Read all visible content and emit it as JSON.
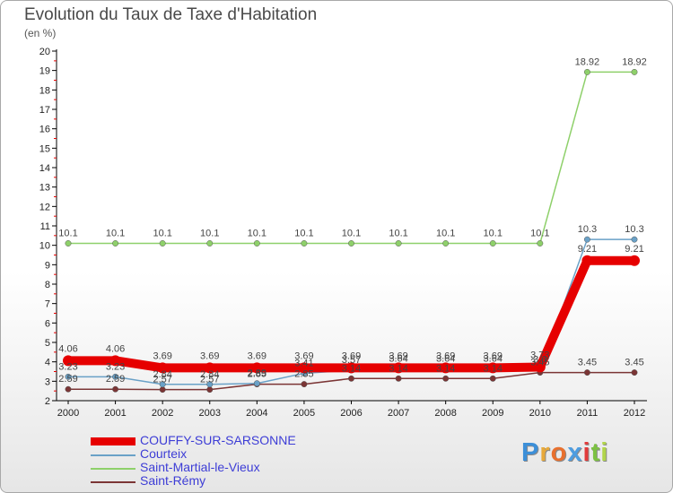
{
  "header": {
    "title": "Evolution du Taux de Taxe d'Habitation",
    "subtitle": "(en %)"
  },
  "brand": {
    "text": "Proxiti",
    "letters": [
      "P",
      "r",
      "o",
      "x",
      "i",
      "t",
      "i"
    ],
    "colors": [
      "#3c8fd8",
      "#e8a93a",
      "#e8702e",
      "#4e9de0",
      "#e23b3b",
      "#7cc142",
      "#b1d54a"
    ]
  },
  "chart_data": {
    "type": "line",
    "title": "Evolution du Taux de Taxe d'Habitation",
    "ylabel": "(en %)",
    "xlabel": "",
    "ylim": [
      2,
      20
    ],
    "yticks": [
      2,
      3,
      4,
      5,
      6,
      7,
      8,
      9,
      10,
      11,
      12,
      13,
      14,
      15,
      16,
      17,
      18,
      19,
      20
    ],
    "grid": false,
    "legend_position": "bottom-left",
    "categories": [
      "2000",
      "2001",
      "2002",
      "2003",
      "2004",
      "2005",
      "2006",
      "2007",
      "2008",
      "2009",
      "2010",
      "2011",
      "2012"
    ],
    "series": [
      {
        "name": "COUFFY-SUR-SARSONNE",
        "color": "#e60000",
        "width": 10,
        "values": [
          4.06,
          4.06,
          3.69,
          3.69,
          3.69,
          3.69,
          3.69,
          3.69,
          3.69,
          3.69,
          3.73,
          9.21,
          9.21
        ],
        "labels": [
          "4.06",
          "4.06",
          "3.69",
          "3.69",
          "3.69",
          "3.69",
          "3.69",
          "3.69",
          "3.69",
          "3.69",
          "3.73",
          "9.21",
          "9.21"
        ]
      },
      {
        "name": "Courteix",
        "color": "#6aa1c7",
        "width": 1.5,
        "values": [
          3.23,
          3.23,
          2.84,
          2.84,
          2.89,
          3.41,
          3.57,
          3.64,
          3.64,
          3.64,
          3.6,
          10.3,
          10.3
        ],
        "labels": [
          "3.23",
          "3.23",
          "2.84",
          "2.84",
          "2.89",
          "3.41",
          "3.57",
          "3.64",
          "3.64",
          "3.64",
          "3.6",
          "10.3",
          "10.3"
        ]
      },
      {
        "name": "Saint-Martial-le-Vieux",
        "color": "#8ed06a",
        "width": 1.5,
        "values": [
          10.1,
          10.1,
          10.1,
          10.1,
          10.1,
          10.1,
          10.1,
          10.1,
          10.1,
          10.1,
          10.1,
          18.92,
          18.92
        ],
        "labels": [
          "10.1",
          "10.1",
          "10.1",
          "10.1",
          "10.1",
          "10.1",
          "10.1",
          "10.1",
          "10.1",
          "10.1",
          "10.1",
          "18.92",
          "18.92"
        ]
      },
      {
        "name": "Saint-Rémy",
        "color": "#7b3535",
        "width": 1.5,
        "values": [
          2.59,
          2.59,
          2.57,
          2.57,
          2.85,
          2.85,
          3.14,
          3.14,
          3.14,
          3.14,
          3.45,
          3.45,
          3.45
        ],
        "labels": [
          "2.59",
          "2.59",
          "2.57",
          "2.57",
          "2.85",
          "2.85",
          "3.14",
          "3.14",
          "3.14",
          "3.14",
          "3.45",
          "3.45",
          "3.45"
        ]
      }
    ]
  }
}
